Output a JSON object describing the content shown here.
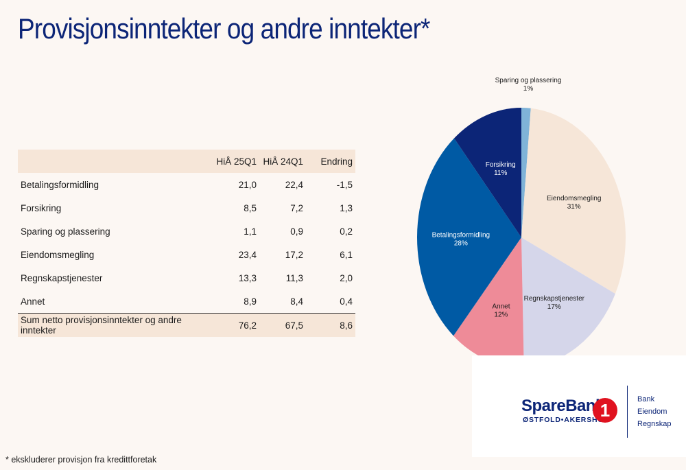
{
  "title": "Provisjonsinntekter og andre inntekter*",
  "table": {
    "headers": [
      "",
      "HiÅ 25Q1",
      "HiÅ 24Q1",
      "Endring"
    ],
    "rows": [
      {
        "label": "Betalingsformidling",
        "v1": "21,0",
        "v2": "22,4",
        "v3": "-1,5"
      },
      {
        "label": "Forsikring",
        "v1": "8,5",
        "v2": "7,2",
        "v3": "1,3"
      },
      {
        "label": "Sparing og plassering",
        "v1": "1,1",
        "v2": "0,9",
        "v3": "0,2"
      },
      {
        "label": "Eiendomsmegling",
        "v1": "23,4",
        "v2": "17,2",
        "v3": "6,1"
      },
      {
        "label": "Regnskapstjenester",
        "v1": "13,3",
        "v2": "11,3",
        "v3": "2,0"
      },
      {
        "label": "Annet",
        "v1": "8,9",
        "v2": "8,4",
        "v3": "0,4"
      }
    ],
    "total": {
      "label": "Sum netto provisjonsinntekter og andre inntekter",
      "v1": "76,2",
      "v2": "67,5",
      "v3": "8,6"
    }
  },
  "chart_data": {
    "type": "pie",
    "title": "",
    "slices": [
      {
        "label": "Sparing og plassering",
        "value": 1.1,
        "pct": "1%",
        "color": "#7fb3d8",
        "text_color": "#1a1a1a"
      },
      {
        "label": "Eiendomsmegling",
        "value": 23.4,
        "pct": "31%",
        "color": "#f6e6d8",
        "text_color": "#1a1a1a"
      },
      {
        "label": "Regnskapstjenester",
        "value": 13.3,
        "pct": "17%",
        "color": "#d5d6ea",
        "text_color": "#1a1a1a"
      },
      {
        "label": "Annet",
        "value": 8.9,
        "pct": "12%",
        "color": "#ee8b98",
        "text_color": "#1a1a1a"
      },
      {
        "label": "Betalingsformidling",
        "value": 21.0,
        "pct": "28%",
        "color": "#005aa4",
        "text_color": "#ffffff"
      },
      {
        "label": "Forsikring",
        "value": 8.5,
        "pct": "11%",
        "color": "#0c2577",
        "text_color": "#ffffff"
      }
    ]
  },
  "logo": {
    "brand": "SpareBank",
    "number": "1",
    "region": "ØSTFOLD•AKERSHUS",
    "links": [
      "Bank",
      "Eiendom",
      "Regnskap"
    ]
  },
  "footnote": "* ekskluderer provisjon fra kredittforetak"
}
